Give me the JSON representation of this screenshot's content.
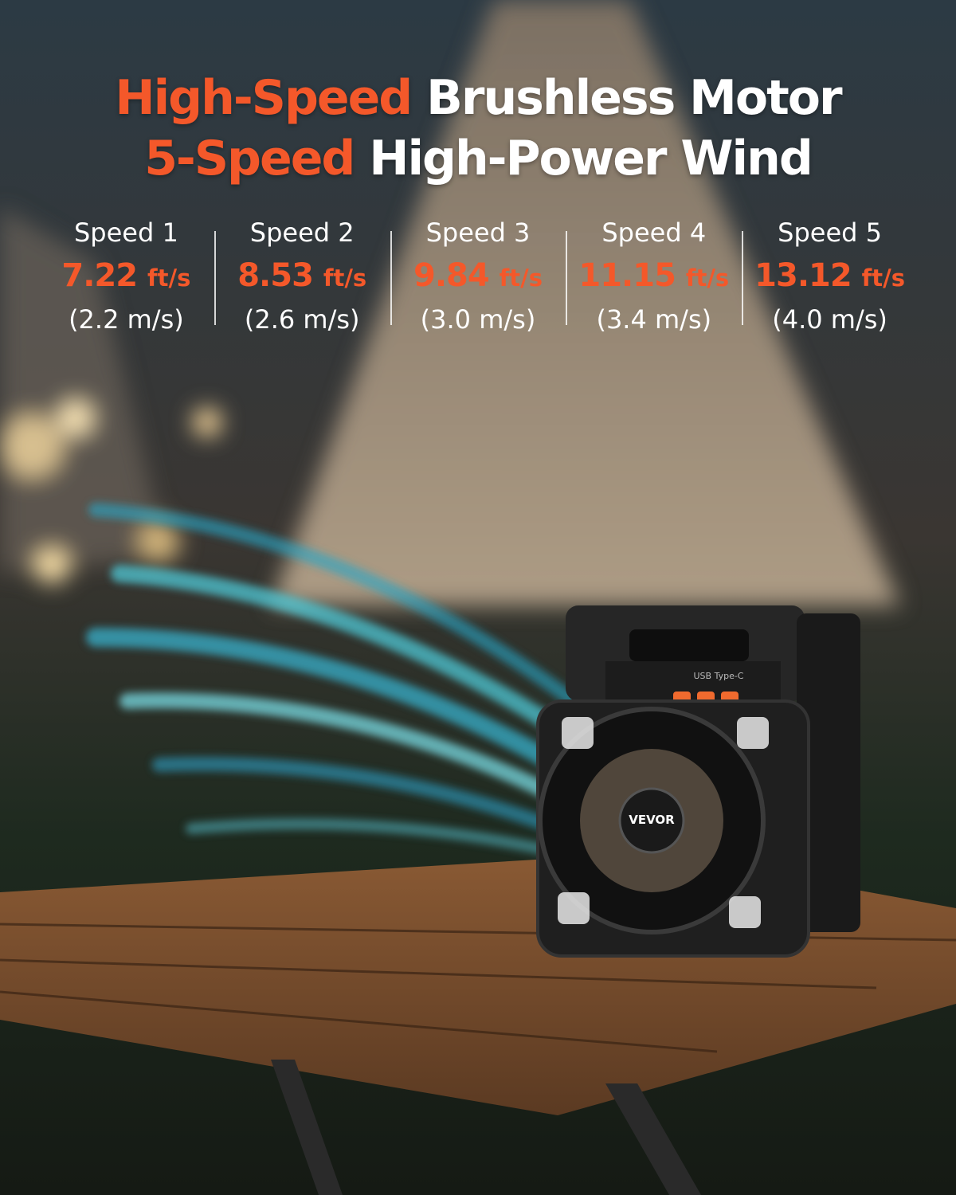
{
  "headline": {
    "line1": {
      "accent": "High-Speed",
      "rest": "Brushless Motor"
    },
    "line2": {
      "accent": "5-Speed",
      "rest": "High-Power Wind"
    }
  },
  "speeds": [
    {
      "label": "Speed 1",
      "value": "7.22",
      "unit": "ft/s",
      "metric": "(2.2 m/s)"
    },
    {
      "label": "Speed 2",
      "value": "8.53",
      "unit": "ft/s",
      "metric": "(2.6 m/s)"
    },
    {
      "label": "Speed 3",
      "value": "9.84",
      "unit": "ft/s",
      "metric": "(3.0 m/s)"
    },
    {
      "label": "Speed 4",
      "value": "11.15",
      "unit": "ft/s",
      "metric": "(3.4 m/s)"
    },
    {
      "label": "Speed 5",
      "value": "13.12",
      "unit": "ft/s",
      "metric": "(4.0 m/s)"
    }
  ],
  "product": {
    "brand": "VEVOR",
    "port": "USB Type-C"
  }
}
